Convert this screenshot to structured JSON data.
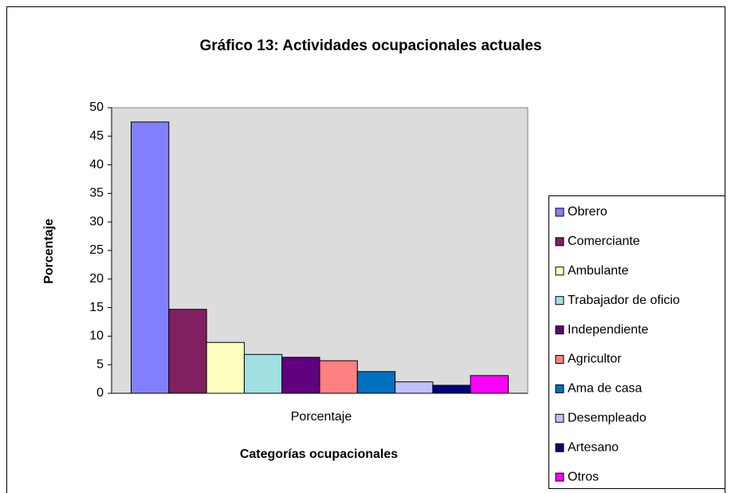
{
  "chart_data": {
    "type": "bar",
    "title": "Gráfico 13: Actividades ocupacionales actuales",
    "x_label": "Categorías ocupacionales",
    "y_label": "Porcentaje",
    "categories": [
      "Porcentaje"
    ],
    "series": [
      {
        "name": "Obrero",
        "color": "#8080ff",
        "values": [
          47.5
        ]
      },
      {
        "name": "Comerciante",
        "color": "#802060",
        "values": [
          14.7
        ]
      },
      {
        "name": "Ambulante",
        "color": "#ffffc0",
        "values": [
          8.9
        ]
      },
      {
        "name": "Trabajador de oficio",
        "color": "#a0e0e0",
        "values": [
          6.8
        ]
      },
      {
        "name": "Independiente",
        "color": "#600080",
        "values": [
          6.3
        ]
      },
      {
        "name": "Agricultor",
        "color": "#ff8080",
        "values": [
          5.7
        ]
      },
      {
        "name": "Ama de casa",
        "color": "#0070c0",
        "values": [
          3.8
        ]
      },
      {
        "name": "Desempleado",
        "color": "#c0c0ff",
        "values": [
          2.0
        ]
      },
      {
        "name": "Artesano",
        "color": "#000080",
        "values": [
          1.4
        ]
      },
      {
        "name": "Otros",
        "color": "#ff00ff",
        "values": [
          3.1
        ]
      }
    ],
    "ylim": [
      0,
      50
    ],
    "yticks": [
      0,
      5,
      10,
      15,
      20,
      25,
      30,
      35,
      40,
      45,
      50
    ],
    "legend": "right"
  }
}
